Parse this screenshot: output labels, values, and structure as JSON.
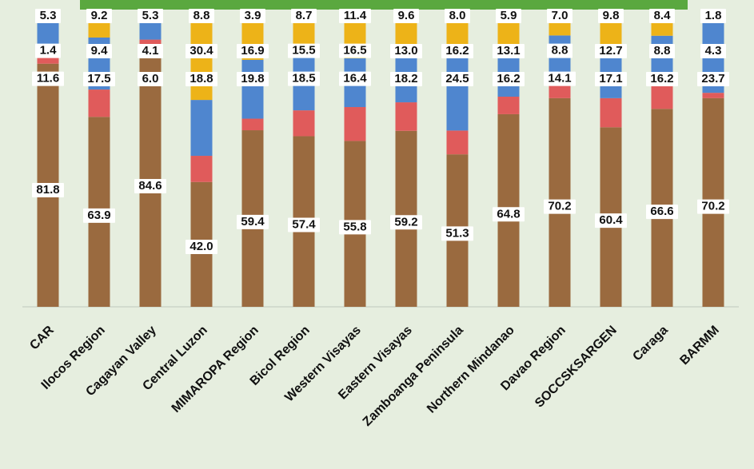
{
  "chart_data": {
    "type": "bar",
    "stacked": true,
    "categories": [
      "CAR",
      "Ilocos Region",
      "Cagayan Valley",
      "Central Luzon",
      "MIMAROPA Region",
      "Bicol Region",
      "Western Visayas",
      "Eastern Visayas",
      "Zamboanga Peninsula",
      "Northern Mindanao",
      "Davao Region",
      "SOCCSKSARGEN",
      "Caraga",
      "BARMM"
    ],
    "series": [
      {
        "color": "#9a6a3f",
        "values": [
          81.8,
          63.9,
          84.6,
          42.0,
          59.4,
          57.4,
          55.8,
          59.2,
          51.3,
          64.8,
          70.2,
          60.4,
          66.6,
          70.2
        ],
        "labels": [
          "81.8",
          "63.9",
          "84.6",
          "42.0",
          "59.4",
          "57.4",
          "55.8",
          "59.2",
          "51.3",
          "64.8",
          "70.2",
          "60.4",
          "66.6",
          "70.2"
        ]
      },
      {
        "color": "#e05b5b",
        "values": [
          5.3,
          9.2,
          5.3,
          8.8,
          3.9,
          8.7,
          11.4,
          9.6,
          8.0,
          5.9,
          7.0,
          9.8,
          8.4,
          1.8
        ],
        "labels": [
          "5.3",
          "9.2",
          "5.3",
          "8.8",
          "3.9",
          "8.7",
          "11.4",
          "9.6",
          "8.0",
          "5.9",
          "7.0",
          "9.8",
          "8.4",
          "1.8"
        ]
      },
      {
        "color": "#4f86cf",
        "values": [
          11.6,
          17.5,
          6.0,
          18.8,
          19.8,
          18.5,
          16.4,
          18.2,
          24.5,
          16.2,
          14.1,
          17.1,
          16.2,
          23.7
        ],
        "labels": [
          "11.6",
          "17.5",
          "6.0",
          "18.8",
          "19.8",
          "18.5",
          "16.4",
          "18.2",
          "24.5",
          "16.2",
          "14.1",
          "17.1",
          "16.2",
          "23.7"
        ]
      },
      {
        "color": "#edb318",
        "values": [
          1.4,
          9.4,
          4.1,
          30.4,
          16.9,
          15.5,
          16.5,
          13.0,
          16.2,
          13.1,
          8.8,
          12.7,
          8.8,
          4.3
        ],
        "labels": [
          "1.4",
          "9.4",
          "4.1",
          "30.4",
          "16.9",
          "15.5",
          "16.5",
          "13.0",
          "16.2",
          "13.1",
          "8.8",
          "12.7",
          "8.8",
          "4.3"
        ]
      }
    ],
    "ylim": [
      0,
      100
    ],
    "grid": false,
    "legend": "none",
    "colors": {
      "background": "#e6eedf",
      "top_band": "#5aa83f",
      "axis": "#bfc8bd"
    }
  }
}
